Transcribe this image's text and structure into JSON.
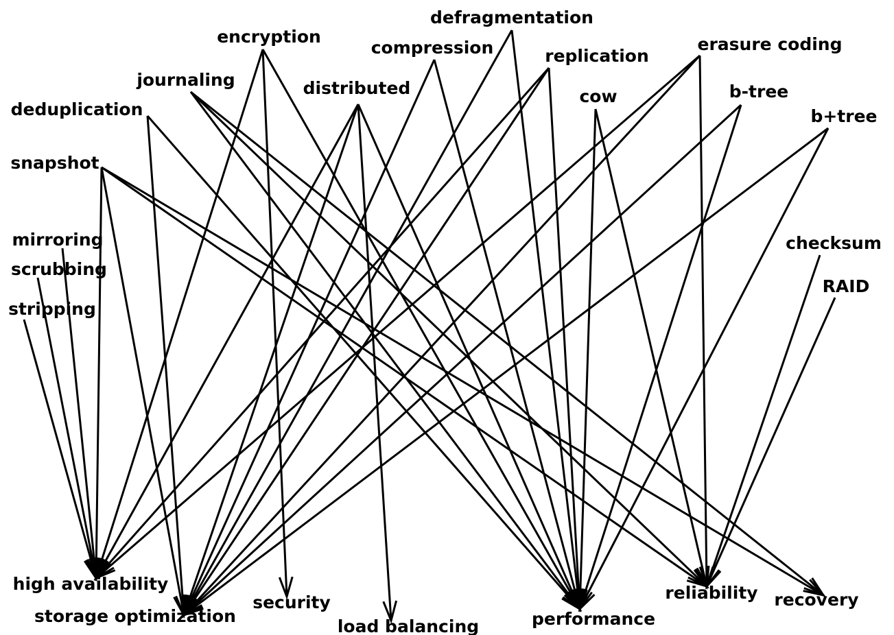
{
  "nodes": [
    {
      "id": "defragmentation",
      "label": "defragmentation"
    },
    {
      "id": "encryption",
      "label": "encryption"
    },
    {
      "id": "compression",
      "label": "compression"
    },
    {
      "id": "replication",
      "label": "replication"
    },
    {
      "id": "erasure_coding",
      "label": "erasure coding"
    },
    {
      "id": "journaling",
      "label": "journaling"
    },
    {
      "id": "distributed",
      "label": "distributed"
    },
    {
      "id": "cow",
      "label": "cow"
    },
    {
      "id": "btree",
      "label": "b-tree"
    },
    {
      "id": "bplustree",
      "label": "b+tree"
    },
    {
      "id": "deduplication",
      "label": "deduplication"
    },
    {
      "id": "snapshot",
      "label": "snapshot"
    },
    {
      "id": "mirroring",
      "label": "mirroring"
    },
    {
      "id": "scrubbing",
      "label": "scrubbing"
    },
    {
      "id": "stripping",
      "label": "stripping"
    },
    {
      "id": "checksum",
      "label": "checksum"
    },
    {
      "id": "raid",
      "label": "RAID"
    },
    {
      "id": "high_availability",
      "label": "high availability"
    },
    {
      "id": "storage_optimization",
      "label": "storage optimization"
    },
    {
      "id": "security",
      "label": "security"
    },
    {
      "id": "load_balancing",
      "label": "load balancing"
    },
    {
      "id": "performance",
      "label": "performance"
    },
    {
      "id": "reliability",
      "label": "reliability"
    },
    {
      "id": "recovery",
      "label": "recovery"
    }
  ],
  "edges": [
    {
      "from": "encryption",
      "to": "high_availability"
    },
    {
      "from": "encryption",
      "to": "security"
    },
    {
      "from": "encryption",
      "to": "performance"
    },
    {
      "from": "defragmentation",
      "to": "storage_optimization"
    },
    {
      "from": "defragmentation",
      "to": "performance"
    },
    {
      "from": "compression",
      "to": "storage_optimization"
    },
    {
      "from": "compression",
      "to": "performance"
    },
    {
      "from": "replication",
      "to": "high_availability"
    },
    {
      "from": "replication",
      "to": "storage_optimization"
    },
    {
      "from": "replication",
      "to": "performance"
    },
    {
      "from": "erasure_coding",
      "to": "high_availability"
    },
    {
      "from": "erasure_coding",
      "to": "storage_optimization"
    },
    {
      "from": "erasure_coding",
      "to": "reliability"
    },
    {
      "from": "journaling",
      "to": "performance"
    },
    {
      "from": "journaling",
      "to": "reliability"
    },
    {
      "from": "journaling",
      "to": "recovery"
    },
    {
      "from": "distributed",
      "to": "high_availability"
    },
    {
      "from": "distributed",
      "to": "storage_optimization"
    },
    {
      "from": "distributed",
      "to": "load_balancing"
    },
    {
      "from": "distributed",
      "to": "performance"
    },
    {
      "from": "cow",
      "to": "performance"
    },
    {
      "from": "cow",
      "to": "reliability"
    },
    {
      "from": "btree",
      "to": "storage_optimization"
    },
    {
      "from": "btree",
      "to": "performance"
    },
    {
      "from": "bplustree",
      "to": "storage_optimization"
    },
    {
      "from": "bplustree",
      "to": "performance"
    },
    {
      "from": "deduplication",
      "to": "storage_optimization"
    },
    {
      "from": "deduplication",
      "to": "performance"
    },
    {
      "from": "snapshot",
      "to": "high_availability"
    },
    {
      "from": "snapshot",
      "to": "storage_optimization"
    },
    {
      "from": "snapshot",
      "to": "reliability"
    },
    {
      "from": "snapshot",
      "to": "recovery"
    },
    {
      "from": "mirroring",
      "to": "high_availability"
    },
    {
      "from": "scrubbing",
      "to": "high_availability"
    },
    {
      "from": "stripping",
      "to": "high_availability"
    },
    {
      "from": "checksum",
      "to": "reliability"
    },
    {
      "from": "raid",
      "to": "reliability"
    }
  ]
}
